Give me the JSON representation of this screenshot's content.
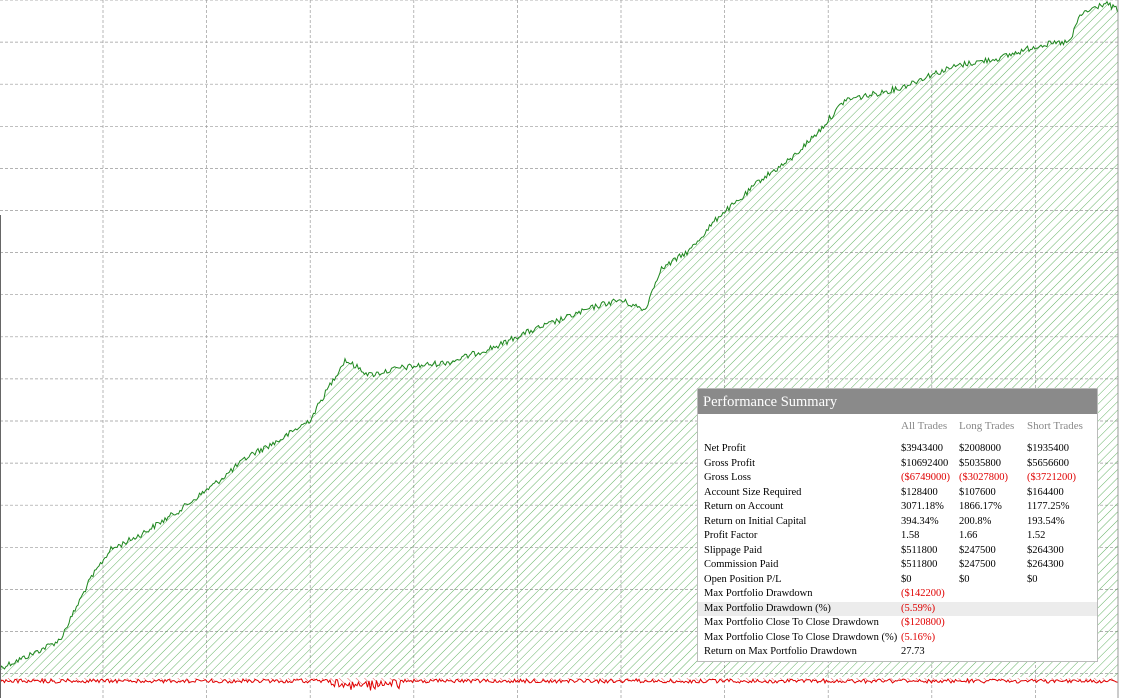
{
  "panel": {
    "title": "Performance Summary",
    "columns": [
      "All Trades",
      "Long Trades",
      "Short Trades"
    ],
    "rows": [
      {
        "label": "Net Profit",
        "values": [
          "$3943400",
          "$2008000",
          "$1935400"
        ]
      },
      {
        "label": "Gross Profit",
        "values": [
          "$10692400",
          "$5035800",
          "$5656600"
        ]
      },
      {
        "label": "Gross Loss",
        "values": [
          "($6749000)",
          "($3027800)",
          "($3721200)"
        ]
      },
      {
        "label": "Account Size Required",
        "values": [
          "$128400",
          "$107600",
          "$164400"
        ]
      },
      {
        "label": "Return on Account",
        "values": [
          "3071.18%",
          "1866.17%",
          "1177.25%"
        ]
      },
      {
        "label": "Return on Initial Capital",
        "values": [
          "394.34%",
          "200.8%",
          "193.54%"
        ]
      },
      {
        "label": "Profit Factor",
        "values": [
          "1.58",
          "1.66",
          "1.52"
        ]
      },
      {
        "label": "Slippage Paid",
        "values": [
          "$511800",
          "$247500",
          "$264300"
        ]
      },
      {
        "label": "Commission Paid",
        "values": [
          "$511800",
          "$247500",
          "$264300"
        ]
      },
      {
        "label": "Open Position P/L",
        "values": [
          "$0",
          "$0",
          "$0"
        ]
      },
      {
        "label": "Max Portfolio Drawdown",
        "values": [
          "($142200)"
        ]
      },
      {
        "label": "Max Portfolio Drawdown (%)",
        "values": [
          "(5.59%)"
        ]
      },
      {
        "label": "Max Portfolio Close To Close Drawdown",
        "values": [
          "($120800)"
        ]
      },
      {
        "label": "Max Portfolio Close To Close Drawdown (%)",
        "values": [
          "(5.16%)"
        ]
      },
      {
        "label": "Return on Max Portfolio Drawdown",
        "values": [
          "27.73"
        ]
      }
    ]
  }
}
